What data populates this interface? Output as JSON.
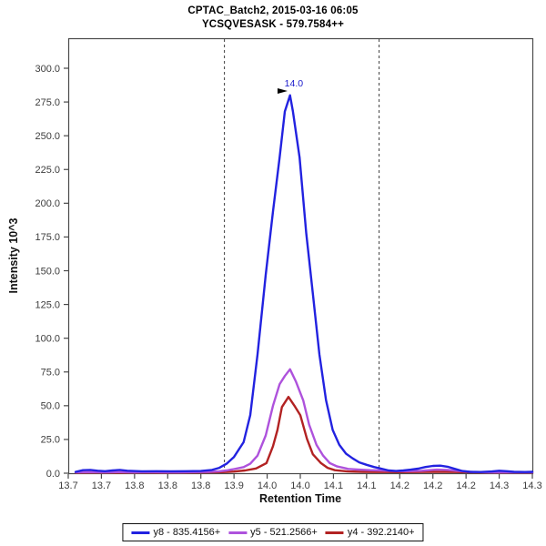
{
  "header": {
    "title_line1": "CPTAC_Batch2, 2015-03-16 06:05",
    "title_line2": "YCSQVESASK - 579.7584++"
  },
  "chart_data": {
    "type": "line",
    "title": "CPTAC_Batch2, 2015-03-16 06:05",
    "subtitle": "YCSQVESASK - 579.7584++",
    "xlabel": "Retention Time",
    "ylabel": "Intensity 10^3",
    "xlim": [
      13.7,
      14.33
    ],
    "ylim": [
      0,
      322
    ],
    "grid": false,
    "legend_position": "bottom-center",
    "background_color": "#ffffff",
    "frame_color": "#4a4a4a",
    "tick_label_color": "#3d3d3d",
    "x_tick_labels": [
      "13.7",
      "13.7",
      "13.8",
      "13.8",
      "13.8",
      "13.9",
      "14.0",
      "14.0",
      "14.1",
      "14.1",
      "14.2",
      "14.2",
      "14.2",
      "14.3",
      "14.3"
    ],
    "y_tick_values": [
      0,
      25,
      50,
      75,
      100,
      125,
      150,
      175,
      200,
      225,
      250,
      275,
      300
    ],
    "y_tick_labels": [
      "0.0",
      "25.0",
      "50.0",
      "75.0",
      "100.0",
      "125.0",
      "150.0",
      "175.0",
      "200.0",
      "225.0",
      "250.0",
      "275.0",
      "300.0"
    ],
    "y_axis_max_value": 300,
    "integration_boundaries": {
      "left_rt": 13.912,
      "right_rt": 14.122,
      "color": "#3c3c3c",
      "style": "dashed"
    },
    "peak_annotation": {
      "label": "14.0",
      "rt": 14.001,
      "value": 280,
      "color": "#1a1acc",
      "arrow_color": "#000000"
    },
    "series": [
      {
        "id": "y8",
        "name": "y8 - 835.4156+",
        "color": "#2222e0",
        "points": [
          [
            13.71,
            1.0
          ],
          [
            13.72,
            2.2
          ],
          [
            13.73,
            2.4
          ],
          [
            13.74,
            1.8
          ],
          [
            13.75,
            1.5
          ],
          [
            13.76,
            2.0
          ],
          [
            13.77,
            2.4
          ],
          [
            13.78,
            1.8
          ],
          [
            13.8,
            1.4
          ],
          [
            13.82,
            1.5
          ],
          [
            13.84,
            1.4
          ],
          [
            13.86,
            1.5
          ],
          [
            13.88,
            1.6
          ],
          [
            13.895,
            2.4
          ],
          [
            13.905,
            4.0
          ],
          [
            13.915,
            7.0
          ],
          [
            13.925,
            12.0
          ],
          [
            13.938,
            23.0
          ],
          [
            13.947,
            43.0
          ],
          [
            13.957,
            88.0
          ],
          [
            13.968,
            147.0
          ],
          [
            13.978,
            194.0
          ],
          [
            13.987,
            234.0
          ],
          [
            13.994,
            268.0
          ],
          [
            14.001,
            280.0
          ],
          [
            14.005,
            268.0
          ],
          [
            14.014,
            234.0
          ],
          [
            14.023,
            178.0
          ],
          [
            14.032,
            133.0
          ],
          [
            14.041,
            88.0
          ],
          [
            14.05,
            54.0
          ],
          [
            14.059,
            32.0
          ],
          [
            14.068,
            21.0
          ],
          [
            14.077,
            14.5
          ],
          [
            14.086,
            11.0
          ],
          [
            14.095,
            8.0
          ],
          [
            14.105,
            6.2
          ],
          [
            14.115,
            4.6
          ],
          [
            14.125,
            3.4
          ],
          [
            14.135,
            2.0
          ],
          [
            14.145,
            1.6
          ],
          [
            14.155,
            2.0
          ],
          [
            14.165,
            2.6
          ],
          [
            14.175,
            3.4
          ],
          [
            14.185,
            4.6
          ],
          [
            14.195,
            5.4
          ],
          [
            14.205,
            5.6
          ],
          [
            14.215,
            4.8
          ],
          [
            14.225,
            3.2
          ],
          [
            14.235,
            1.6
          ],
          [
            14.245,
            1.0
          ],
          [
            14.26,
            0.9
          ],
          [
            14.275,
            1.3
          ],
          [
            14.285,
            1.8
          ],
          [
            14.295,
            1.5
          ],
          [
            14.305,
            1.0
          ],
          [
            14.32,
            0.9
          ],
          [
            14.33,
            1.0
          ]
        ]
      },
      {
        "id": "y5",
        "name": "y5 - 521.2566+",
        "color": "#ae52dc",
        "points": [
          [
            13.71,
            0.7
          ],
          [
            13.73,
            0.8
          ],
          [
            13.75,
            0.7
          ],
          [
            13.77,
            0.8
          ],
          [
            13.79,
            0.7
          ],
          [
            13.81,
            0.8
          ],
          [
            13.83,
            0.7
          ],
          [
            13.85,
            0.7
          ],
          [
            13.87,
            0.8
          ],
          [
            13.89,
            1.0
          ],
          [
            13.905,
            1.4
          ],
          [
            13.915,
            2.0
          ],
          [
            13.925,
            3.0
          ],
          [
            13.938,
            4.5
          ],
          [
            13.947,
            7.0
          ],
          [
            13.957,
            13.0
          ],
          [
            13.968,
            28.0
          ],
          [
            13.978,
            50.0
          ],
          [
            13.987,
            66.0
          ],
          [
            13.994,
            72.0
          ],
          [
            14.001,
            77.0
          ],
          [
            14.009,
            68.0
          ],
          [
            14.019,
            54.0
          ],
          [
            14.027,
            36.0
          ],
          [
            14.037,
            21.0
          ],
          [
            14.046,
            13.0
          ],
          [
            14.055,
            7.5
          ],
          [
            14.065,
            5.0
          ],
          [
            14.08,
            3.2
          ],
          [
            14.095,
            2.6
          ],
          [
            14.11,
            2.2
          ],
          [
            14.125,
            2.0
          ],
          [
            14.14,
            1.6
          ],
          [
            14.16,
            1.5
          ],
          [
            14.18,
            1.8
          ],
          [
            14.2,
            2.6
          ],
          [
            14.215,
            2.4
          ],
          [
            14.23,
            1.6
          ],
          [
            14.25,
            0.9
          ],
          [
            14.27,
            0.7
          ],
          [
            14.29,
            0.7
          ],
          [
            14.31,
            0.6
          ],
          [
            14.33,
            0.6
          ]
        ]
      },
      {
        "id": "y4",
        "name": "y4 - 392.2140+",
        "color": "#b22222",
        "points": [
          [
            13.71,
            0.4
          ],
          [
            13.74,
            0.5
          ],
          [
            13.77,
            0.4
          ],
          [
            13.8,
            0.5
          ],
          [
            13.83,
            0.4
          ],
          [
            13.86,
            0.5
          ],
          [
            13.89,
            0.6
          ],
          [
            13.91,
            0.8
          ],
          [
            13.925,
            1.2
          ],
          [
            13.94,
            2.0
          ],
          [
            13.955,
            3.5
          ],
          [
            13.969,
            7.5
          ],
          [
            13.978,
            20.0
          ],
          [
            13.984,
            32.0
          ],
          [
            13.99,
            49.0
          ],
          [
            13.999,
            56.5
          ],
          [
            14.007,
            50.0
          ],
          [
            14.015,
            43.0
          ],
          [
            14.024,
            25.5
          ],
          [
            14.032,
            14.0
          ],
          [
            14.043,
            7.5
          ],
          [
            14.052,
            4.0
          ],
          [
            14.062,
            2.2
          ],
          [
            14.08,
            1.3
          ],
          [
            14.1,
            1.0
          ],
          [
            14.125,
            0.9
          ],
          [
            14.15,
            0.8
          ],
          [
            14.175,
            0.9
          ],
          [
            14.2,
            1.1
          ],
          [
            14.225,
            0.9
          ],
          [
            14.25,
            0.6
          ],
          [
            14.28,
            0.5
          ],
          [
            14.31,
            0.5
          ],
          [
            14.33,
            0.5
          ]
        ]
      }
    ]
  }
}
